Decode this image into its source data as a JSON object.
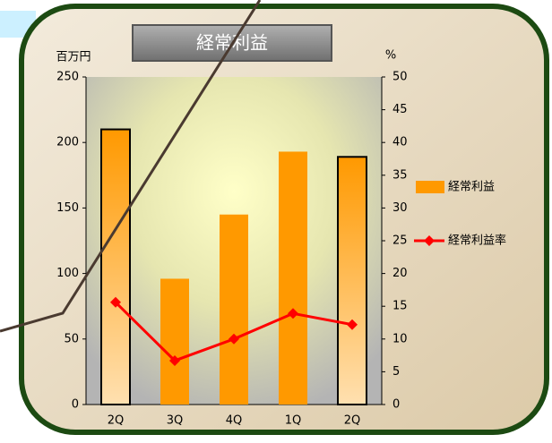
{
  "chart_data": {
    "type": "combo",
    "title": "経常利益",
    "y_label": "百万円",
    "y2_label": "%",
    "categories": [
      "2Q",
      "3Q",
      "4Q",
      "1Q",
      "2Q"
    ],
    "series": [
      {
        "name": "経常利益",
        "type": "bar",
        "color": "#ff9900",
        "values": [
          210,
          96,
          145,
          193,
          189
        ]
      },
      {
        "name": "経常利益率",
        "type": "line",
        "axis": "y2",
        "color": "#ff0000",
        "values": [
          15.6,
          6.7,
          10.0,
          13.9,
          12.2
        ]
      }
    ],
    "outlined_categories": [
      0,
      4
    ],
    "ylim": [
      0,
      250
    ],
    "yticks": [
      0,
      50,
      100,
      150,
      200,
      250
    ],
    "y2lim": [
      0,
      50
    ],
    "y2ticks": [
      0,
      5,
      10,
      15,
      20,
      25,
      30,
      35,
      40,
      45,
      50
    ]
  }
}
